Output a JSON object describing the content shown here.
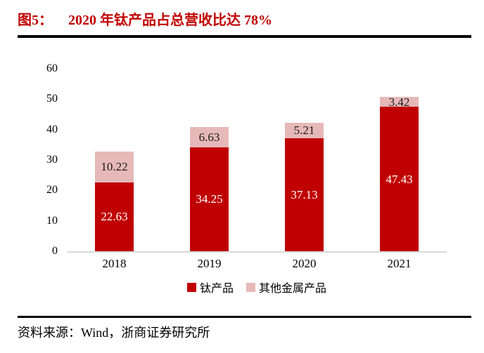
{
  "figure": {
    "label": "图5：",
    "title": "2020 年钛产品占总营收比达 78%"
  },
  "chart_data": {
    "type": "bar",
    "stacked": true,
    "title": "2020 年钛产品占总营收比达 78%",
    "categories": [
      "2018",
      "2019",
      "2020",
      "2021"
    ],
    "series": [
      {
        "name": "钛产品",
        "color": "#c00000",
        "label_color": "#ffffff",
        "values": [
          22.63,
          34.25,
          37.13,
          47.43
        ]
      },
      {
        "name": "其他金属产品",
        "color": "#e6b9b8",
        "label_color": "#1a1a1a",
        "values": [
          10.22,
          6.63,
          5.21,
          3.42
        ]
      }
    ],
    "xlabel": "",
    "ylabel": "",
    "ylim": [
      0,
      60
    ],
    "y_ticks": [
      0,
      10,
      20,
      30,
      40,
      50,
      60
    ],
    "grid": false,
    "legend_position": "bottom",
    "data_labels": true
  },
  "source": {
    "text": "资料来源：Wind，浙商证券研究所"
  },
  "colors": {
    "title_red": "#c00000",
    "bar_red": "#c00000",
    "bar_pink": "#e6b9b8",
    "axis_line": "#d9d9d9",
    "rule_black": "#000000"
  }
}
